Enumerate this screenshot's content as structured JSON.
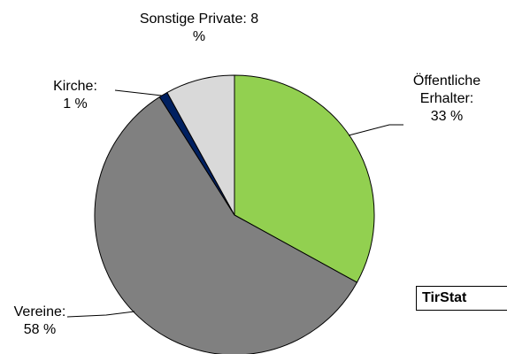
{
  "chart_data": {
    "type": "pie",
    "categories": [
      "Öffentliche Erhalter:",
      "Vereine:",
      "Kirche:",
      "Sonstige Private:"
    ],
    "values": [
      33,
      58,
      1,
      8
    ],
    "value_labels": [
      "33 %",
      "58 %",
      "1 %",
      "8 %"
    ],
    "colors": [
      "#92d050",
      "#808080",
      "#002060",
      "#d9d9d9"
    ],
    "source": "TirStat"
  }
}
